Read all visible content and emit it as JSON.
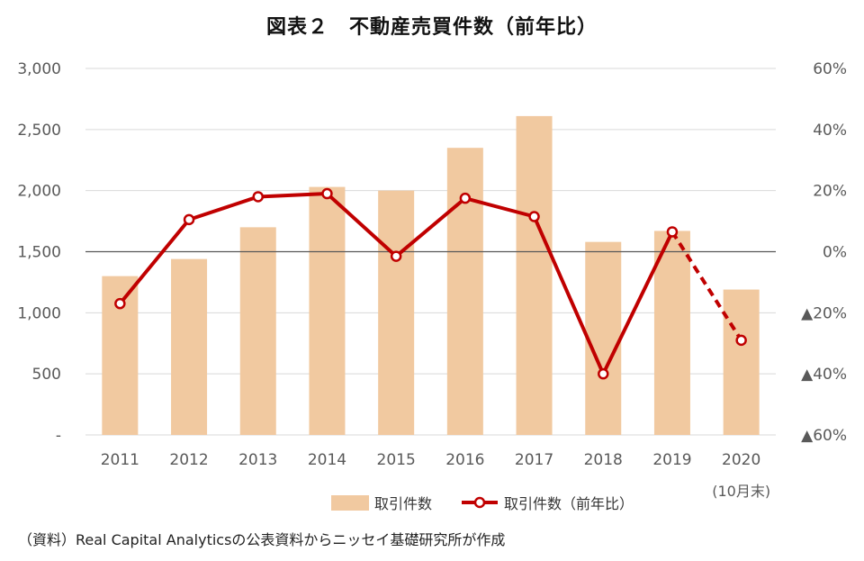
{
  "chart_data": {
    "type": "bar+line",
    "title": "図表２　不動産売買件数（前年比）",
    "categories": [
      "2011",
      "2012",
      "2013",
      "2014",
      "2015",
      "2016",
      "2017",
      "2018",
      "2019",
      "2020"
    ],
    "category_sublabels": [
      "",
      "",
      "",
      "",
      "",
      "",
      "",
      "",
      "",
      "(10月末)"
    ],
    "series": [
      {
        "name": "取引件数",
        "type": "bar",
        "axis": "left",
        "color": "#f1c9a0",
        "values": [
          1300,
          1440,
          1700,
          2030,
          2000,
          2350,
          2610,
          1580,
          1670,
          1190
        ]
      },
      {
        "name": "取引件数（前年比）",
        "type": "line",
        "axis": "right",
        "color": "#c00000",
        "values": [
          -17,
          10.5,
          18,
          19,
          -1.5,
          17.5,
          11.5,
          -40,
          6.5,
          -29
        ],
        "dashed_last_segment": true
      }
    ],
    "y_left": {
      "min": 0,
      "max": 3000,
      "ticks": [
        0,
        500,
        1000,
        1500,
        2000,
        2500,
        3000
      ],
      "tick_labels": [
        "-",
        "500",
        "1,000",
        "1,500",
        "2,000",
        "2,500",
        "3,000"
      ]
    },
    "y_right": {
      "min": -60,
      "max": 60,
      "ticks": [
        -60,
        -40,
        -20,
        0,
        20,
        40,
        60
      ],
      "tick_labels": [
        "▲60%",
        "▲40%",
        "▲20%",
        "0%",
        "20%",
        "40%",
        "60%"
      ]
    },
    "grid": true,
    "legend_position": "bottom"
  },
  "source_note": "（資料）Real Capital Analyticsの公表資料からニッセイ基礎研究所が作成"
}
